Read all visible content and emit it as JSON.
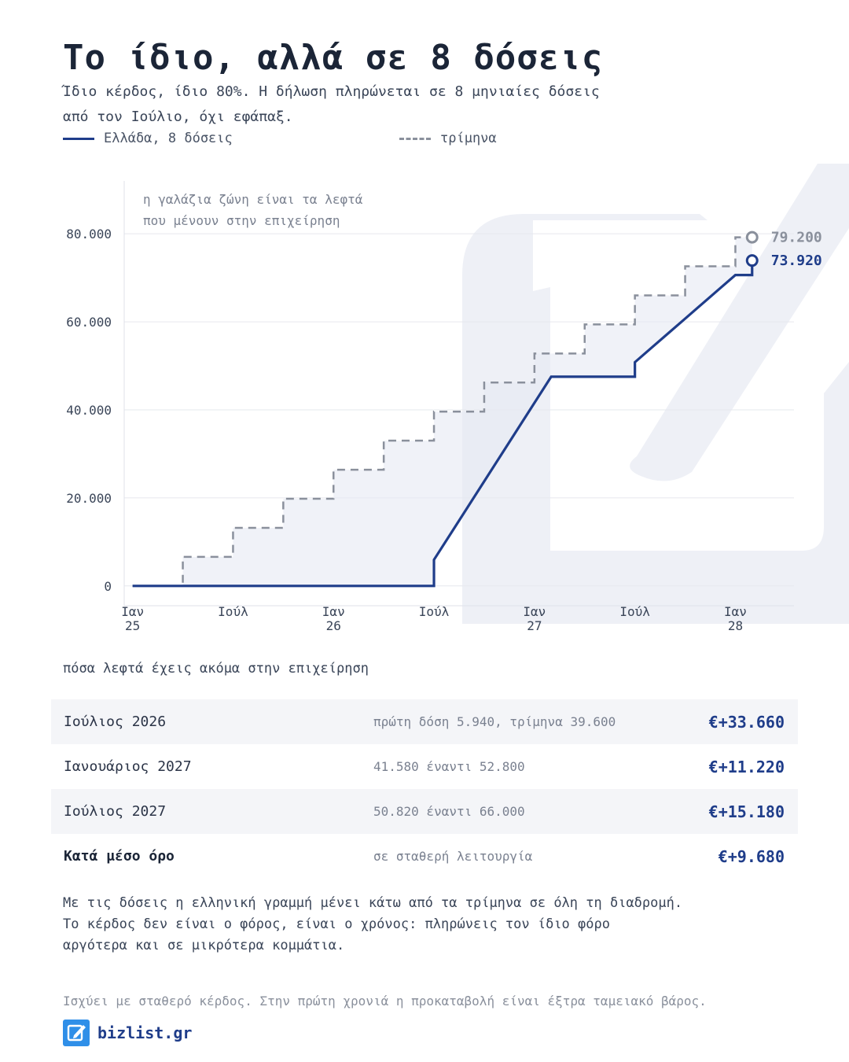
{
  "header": {
    "title": "Το ίδιο, αλλά σε 8 δόσεις",
    "subtitle": "Ίδιο κέρδος, ίδιο 80%. Η δήλωση πληρώνεται σε 8 μηνιαίες δόσεις από τον Ιούλιο, όχι εφάπαξ."
  },
  "legend": {
    "series_a": "Ελλάδα, 8 δόσεις",
    "series_b": "τρίμηνα"
  },
  "colors": {
    "greece": "#1f3d8a",
    "quarterly": "#8a909c",
    "band": "#e6e9f3",
    "watermark": "#eef0f6"
  },
  "chart_data": {
    "type": "line",
    "step": true,
    "annotation": "η γαλάζια ζώνη είναι τα λεφτά που μένουν στην επιχείρηση",
    "ylim": [
      -2000,
      92000
    ],
    "yticks": [
      0,
      20000,
      40000,
      60000,
      80000
    ],
    "ytick_labels": [
      "0",
      "20.000",
      "40.000",
      "60.000",
      "80.000"
    ],
    "xlim": [
      -0.5,
      39.5
    ],
    "xticks": [
      {
        "m": 0,
        "l1": "Ιαν",
        "l2": "25"
      },
      {
        "m": 6,
        "l1": "Ιούλ",
        "l2": ""
      },
      {
        "m": 12,
        "l1": "Ιαν",
        "l2": "26"
      },
      {
        "m": 18,
        "l1": "Ιούλ",
        "l2": ""
      },
      {
        "m": 24,
        "l1": "Ιαν",
        "l2": "27"
      },
      {
        "m": 30,
        "l1": "Ιούλ",
        "l2": ""
      },
      {
        "m": 36,
        "l1": "Ιαν",
        "l2": "28"
      }
    ],
    "series": [
      {
        "name": "Ελλάδα, 8 δόσεις",
        "style": "solid",
        "end_label": "73.920",
        "points": [
          [
            0,
            0
          ],
          [
            18,
            0
          ],
          [
            18,
            5940
          ],
          [
            19,
            11880
          ],
          [
            20,
            17820
          ],
          [
            21,
            23760
          ],
          [
            22,
            29700
          ],
          [
            23,
            35640
          ],
          [
            24,
            41580
          ],
          [
            25,
            47520
          ],
          [
            30,
            47520
          ],
          [
            30,
            50820
          ],
          [
            31,
            54120
          ],
          [
            32,
            57420
          ],
          [
            33,
            60720
          ],
          [
            34,
            64020
          ],
          [
            35,
            67320
          ],
          [
            36,
            70620
          ],
          [
            37,
            70620
          ],
          [
            37,
            73920
          ]
        ]
      },
      {
        "name": "τρίμηνα",
        "style": "dashed",
        "end_label": "79.200",
        "points": [
          [
            0,
            0
          ],
          [
            3,
            0
          ],
          [
            3,
            6600
          ],
          [
            6,
            6600
          ],
          [
            6,
            13200
          ],
          [
            9,
            13200
          ],
          [
            9,
            19800
          ],
          [
            12,
            19800
          ],
          [
            12,
            26400
          ],
          [
            15,
            26400
          ],
          [
            15,
            33000
          ],
          [
            18,
            33000
          ],
          [
            18,
            39600
          ],
          [
            21,
            39600
          ],
          [
            21,
            46200
          ],
          [
            24,
            46200
          ],
          [
            24,
            52800
          ],
          [
            27,
            52800
          ],
          [
            27,
            59400
          ],
          [
            30,
            59400
          ],
          [
            30,
            66000
          ],
          [
            33,
            66000
          ],
          [
            33,
            72600
          ],
          [
            36,
            72600
          ],
          [
            36,
            79200
          ],
          [
            37,
            79200
          ]
        ]
      }
    ]
  },
  "table": {
    "label": "πόσα λεφτά έχεις ακόμα στην επιχείρηση",
    "rows": [
      {
        "label": "Ιούλιος 2026",
        "note": "πρώτη δόση 5.940, τρίμηνα 39.600",
        "value": "€+33.660"
      },
      {
        "label": "Ιανουάριος 2027",
        "note": "41.580 έναντι 52.800",
        "value": "€+11.220"
      },
      {
        "label": "Ιούλιος 2027",
        "note": "50.820 έναντι 66.000",
        "value": "€+15.180"
      },
      {
        "label": "Κατά μέσο όρο",
        "note": "σε σταθερή λειτουργία",
        "value": "€+9.680"
      }
    ]
  },
  "body": {
    "line1": "Με τις δόσεις η ελληνική γραμμή μένει κάτω από τα τρίμηνα σε όλη τη διαδρομή.",
    "line2": "Το κέρδος δεν είναι ο φόρος, είναι ο χρόνος: πληρώνεις τον ίδιο φόρο",
    "line3": "αργότερα και σε μικρότερα κομμάτια."
  },
  "footnote": "Ισχύει με σταθερό κέρδος. Στην πρώτη χρονιά η προκαταβολή είναι έξτρα ταμειακό βάρος.",
  "brand": {
    "name": "bizlist.gr",
    "logo_icon": "edit-square-icon"
  }
}
